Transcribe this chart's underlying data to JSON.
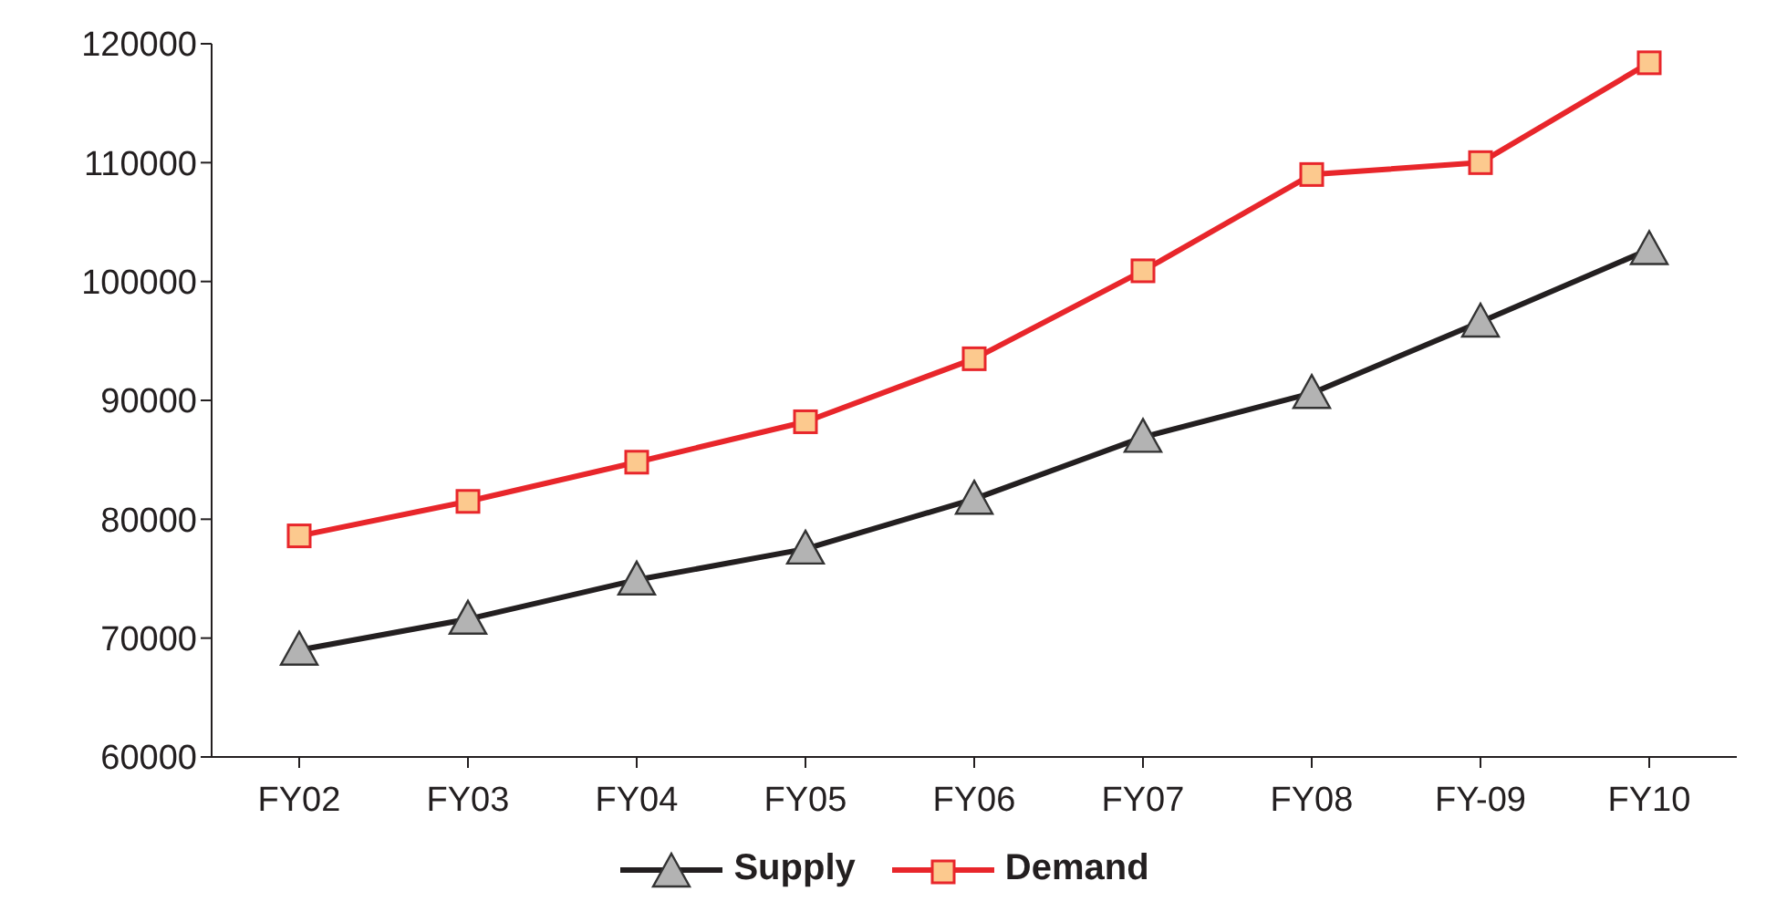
{
  "chart_data": {
    "type": "line",
    "categories": [
      "FY02",
      "FY03",
      "FY04",
      "FY05",
      "FY06",
      "FY07",
      "FY08",
      "FY-09",
      "FY10"
    ],
    "series": [
      {
        "name": "Supply",
        "color": "#231f20",
        "marker": "triangle",
        "values": [
          69000,
          71600,
          74900,
          77500,
          81700,
          86900,
          90600,
          96600,
          102700
        ]
      },
      {
        "name": "Demand",
        "color": "#e8262b",
        "marker": "square",
        "values": [
          78600,
          81500,
          84800,
          88200,
          93500,
          100900,
          109000,
          110000,
          118400
        ]
      }
    ],
    "ylim": [
      60000,
      120000
    ],
    "yticks": [
      60000,
      70000,
      80000,
      90000,
      100000,
      110000,
      120000
    ],
    "grid": false,
    "legend": "bottom"
  }
}
